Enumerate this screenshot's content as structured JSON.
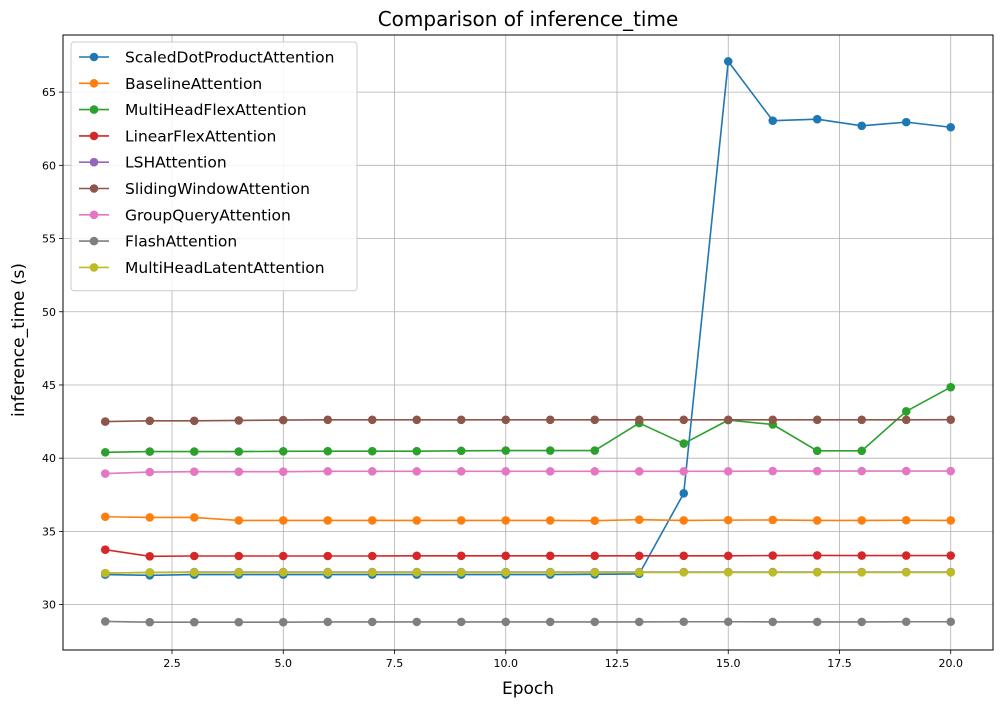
{
  "chart_data": {
    "type": "line",
    "title": "Comparison of inference_time",
    "xlabel": "Epoch",
    "ylabel": "inference_time (s)",
    "xlim": [
      0.05,
      20.95
    ],
    "ylim": [
      26.9,
      68.9
    ],
    "xticks": [
      2.5,
      5.0,
      7.5,
      10.0,
      12.5,
      15.0,
      17.5,
      20.0
    ],
    "xtick_labels": [
      "2.5",
      "5.0",
      "7.5",
      "10.0",
      "12.5",
      "15.0",
      "17.5",
      "20.0"
    ],
    "yticks": [
      30,
      35,
      40,
      45,
      50,
      55,
      60,
      65
    ],
    "ytick_labels": [
      "30",
      "35",
      "40",
      "45",
      "50",
      "55",
      "60",
      "65"
    ],
    "grid": true,
    "legend_position": "top-left",
    "x": [
      1,
      2,
      3,
      4,
      5,
      6,
      7,
      8,
      9,
      10,
      11,
      12,
      13,
      14,
      15,
      16,
      17,
      18,
      19,
      20
    ],
    "series": [
      {
        "name": "ScaledDotProductAttention",
        "color": "#1f77b4",
        "values": [
          32.05,
          32.0,
          32.05,
          32.05,
          32.05,
          32.05,
          32.05,
          32.05,
          32.05,
          32.05,
          32.05,
          32.07,
          32.1,
          37.6,
          67.1,
          63.05,
          63.15,
          62.7,
          62.95,
          62.6
        ]
      },
      {
        "name": "BaselineAttention",
        "color": "#ff7f0e",
        "values": [
          36.0,
          35.95,
          35.95,
          35.75,
          35.75,
          35.75,
          35.75,
          35.75,
          35.75,
          35.75,
          35.75,
          35.73,
          35.8,
          35.75,
          35.77,
          35.78,
          35.75,
          35.75,
          35.76,
          35.75
        ]
      },
      {
        "name": "MultiHeadFlexAttention",
        "color": "#2ca02c",
        "values": [
          40.4,
          40.45,
          40.45,
          40.45,
          40.47,
          40.48,
          40.48,
          40.48,
          40.5,
          40.52,
          40.52,
          40.52,
          42.4,
          41.0,
          42.6,
          42.3,
          40.5,
          40.5,
          43.2,
          44.85
        ]
      },
      {
        "name": "LinearFlexAttention",
        "color": "#d62728",
        "values": [
          33.75,
          33.3,
          33.32,
          33.32,
          33.32,
          33.32,
          33.32,
          33.33,
          33.33,
          33.33,
          33.33,
          33.33,
          33.33,
          33.33,
          33.33,
          33.35,
          33.36,
          33.35,
          33.35,
          33.35
        ]
      },
      {
        "name": "LSHAttention",
        "color": "#9467bd",
        "values": [
          32.15,
          32.2,
          32.22,
          32.22,
          32.22,
          32.22,
          32.22,
          32.22,
          32.22,
          32.22,
          32.22,
          32.22,
          32.22,
          32.22,
          32.22,
          32.22,
          32.22,
          32.22,
          32.22,
          32.22
        ]
      },
      {
        "name": "SlidingWindowAttention",
        "color": "#8c564b",
        "values": [
          42.5,
          42.55,
          42.55,
          42.58,
          42.6,
          42.62,
          42.62,
          42.62,
          42.62,
          42.62,
          42.62,
          42.62,
          42.62,
          42.62,
          42.62,
          42.62,
          42.62,
          42.62,
          42.62,
          42.63
        ]
      },
      {
        "name": "GroupQueryAttention",
        "color": "#e377c2",
        "values": [
          38.95,
          39.05,
          39.08,
          39.08,
          39.08,
          39.1,
          39.1,
          39.1,
          39.1,
          39.1,
          39.1,
          39.1,
          39.1,
          39.1,
          39.1,
          39.12,
          39.12,
          39.12,
          39.12,
          39.12
        ]
      },
      {
        "name": "FlashAttention",
        "color": "#7f7f7f",
        "values": [
          28.85,
          28.8,
          28.8,
          28.8,
          28.8,
          28.82,
          28.82,
          28.82,
          28.82,
          28.82,
          28.82,
          28.82,
          28.82,
          28.83,
          28.83,
          28.82,
          28.82,
          28.82,
          28.83,
          28.83
        ]
      },
      {
        "name": "MultiHeadLatentAttention",
        "color": "#bcbd22",
        "values": [
          32.15,
          32.2,
          32.2,
          32.2,
          32.2,
          32.2,
          32.2,
          32.2,
          32.2,
          32.2,
          32.2,
          32.2,
          32.2,
          32.2,
          32.2,
          32.2,
          32.2,
          32.2,
          32.2,
          32.2
        ]
      }
    ]
  }
}
